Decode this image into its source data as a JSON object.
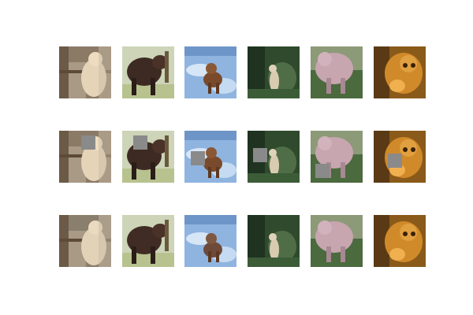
{
  "grid": {
    "rows": [
      {
        "role": "originals",
        "tiles": [
          {
            "name": "cat-window",
            "occluded": false
          },
          {
            "name": "dark-cow",
            "occluded": false
          },
          {
            "name": "dog-snow",
            "occluded": false
          },
          {
            "name": "cat-grass",
            "occluded": false
          },
          {
            "name": "pink-pig-grass",
            "occluded": false
          },
          {
            "name": "orange-dog",
            "occluded": false
          }
        ]
      },
      {
        "role": "occluded",
        "tiles": [
          {
            "name": "cat-window",
            "occluded": true
          },
          {
            "name": "dark-cow",
            "occluded": true
          },
          {
            "name": "dog-snow",
            "occluded": true
          },
          {
            "name": "cat-grass",
            "occluded": true
          },
          {
            "name": "pink-pig-grass",
            "occluded": true
          },
          {
            "name": "orange-dog",
            "occluded": true
          }
        ]
      },
      {
        "role": "reconstructed",
        "tiles": [
          {
            "name": "cat-window",
            "occluded": false
          },
          {
            "name": "dark-cow",
            "occluded": false
          },
          {
            "name": "dog-snow",
            "occluded": false
          },
          {
            "name": "cat-grass",
            "occluded": false
          },
          {
            "name": "pink-pig-grass",
            "occluded": false
          },
          {
            "name": "orange-dog",
            "occluded": false
          }
        ]
      }
    ]
  },
  "colors": {
    "background": "#ffffff",
    "occluder": "#8a8a8a"
  }
}
